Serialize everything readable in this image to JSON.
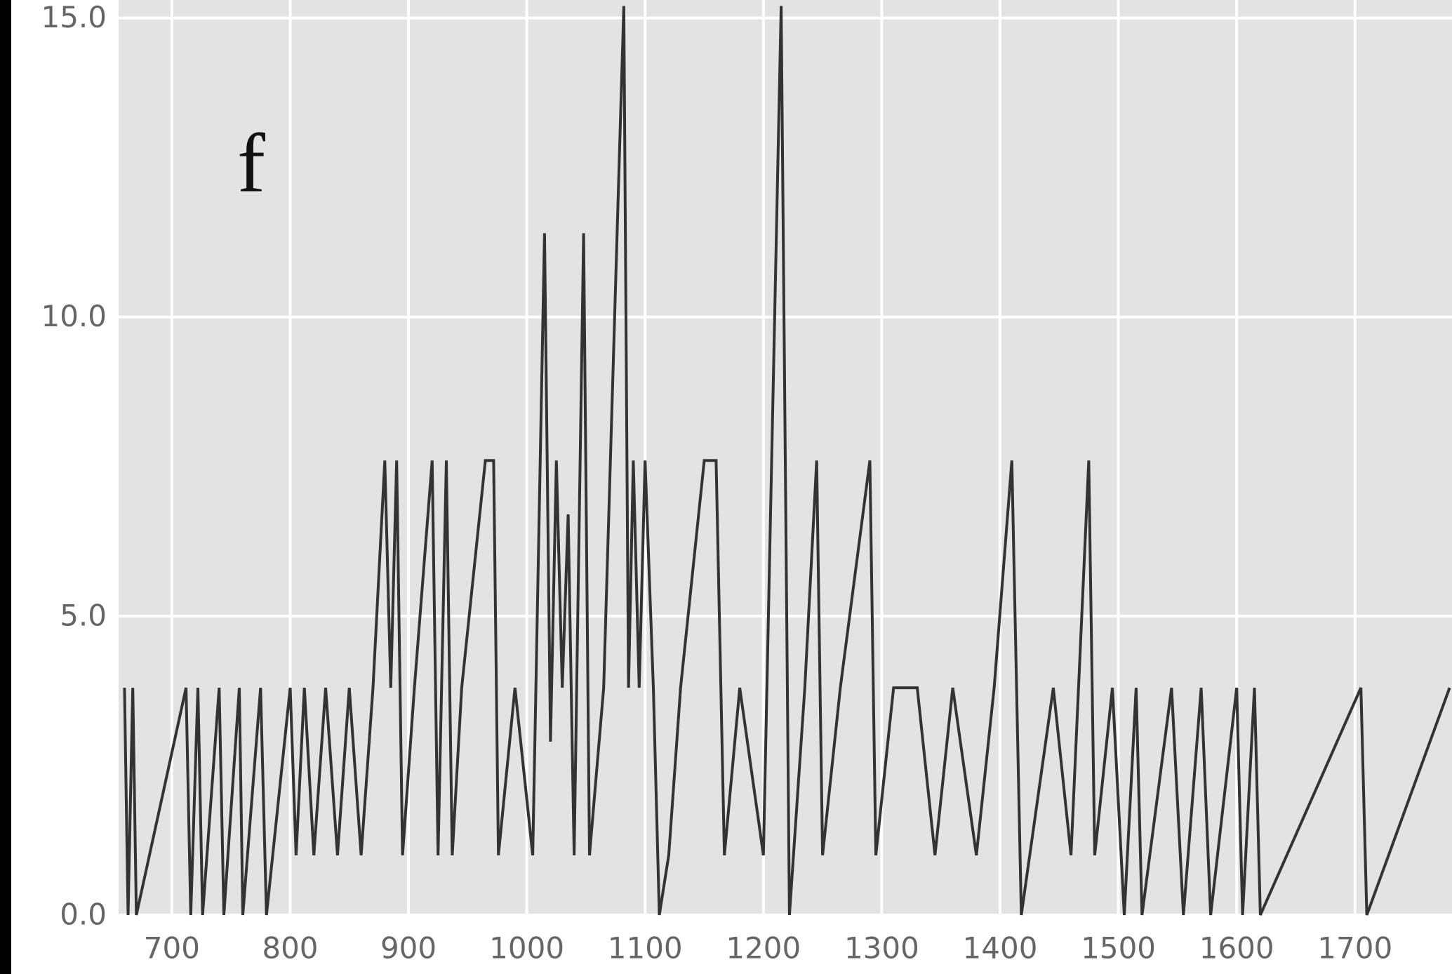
{
  "chart_data": {
    "type": "line",
    "annotation": "f",
    "color": "#333333",
    "grid": true,
    "xlim": [
      655,
      1782
    ],
    "ylim": [
      0,
      15.3
    ],
    "xticks": [
      700,
      800,
      900,
      1000,
      1100,
      1200,
      1300,
      1400,
      1500,
      1600,
      1700
    ],
    "yticks": [
      {
        "value": 0,
        "label": "0.0"
      },
      {
        "value": 5,
        "label": "5.0"
      },
      {
        "value": 10,
        "label": "10.0"
      },
      {
        "value": 15,
        "label": "15.0"
      }
    ],
    "series": [
      {
        "x": [
          660,
          663,
          667,
          670,
          712,
          716,
          722,
          726,
          740,
          744,
          757,
          760,
          775,
          780,
          800,
          805,
          812,
          820,
          830,
          840,
          850,
          860,
          870,
          880,
          885,
          890,
          895,
          905,
          920,
          925,
          932,
          937,
          945,
          965,
          972,
          976,
          990,
          1005,
          1015,
          1020,
          1025,
          1030,
          1035,
          1040,
          1048,
          1053,
          1065,
          1082,
          1086,
          1090,
          1095,
          1100,
          1107,
          1112,
          1120,
          1130,
          1150,
          1160,
          1167,
          1180,
          1200,
          1215,
          1222,
          1235,
          1245,
          1250,
          1265,
          1290,
          1295,
          1310,
          1330,
          1345,
          1360,
          1380,
          1395,
          1410,
          1418,
          1445,
          1460,
          1475,
          1480,
          1495,
          1505,
          1515,
          1520,
          1545,
          1555,
          1570,
          1578,
          1600,
          1605,
          1615,
          1620,
          1705,
          1710,
          1780
        ],
        "values": [
          3.8,
          0,
          3.8,
          0,
          3.8,
          0,
          3.8,
          0,
          3.8,
          0,
          3.8,
          0,
          3.8,
          0,
          3.8,
          1,
          3.8,
          1,
          3.8,
          1,
          3.8,
          1,
          3.8,
          7.6,
          3.8,
          7.6,
          1,
          3.8,
          7.6,
          1,
          7.6,
          1,
          3.8,
          7.6,
          7.6,
          1,
          3.8,
          1,
          11.4,
          2.9,
          7.6,
          3.8,
          6.7,
          1,
          11.4,
          1,
          3.8,
          15.2,
          3.8,
          7.6,
          3.8,
          7.6,
          3.8,
          0,
          1,
          3.8,
          7.6,
          7.6,
          1,
          3.8,
          1,
          15.2,
          0,
          3.8,
          7.6,
          1,
          3.8,
          7.6,
          1,
          3.8,
          3.8,
          1,
          3.8,
          1,
          3.8,
          7.6,
          0,
          3.8,
          1,
          7.6,
          1,
          3.8,
          0,
          3.8,
          0,
          3.8,
          0,
          3.8,
          0,
          3.8,
          0,
          3.8,
          0,
          3.8,
          0,
          3.8
        ]
      }
    ]
  }
}
